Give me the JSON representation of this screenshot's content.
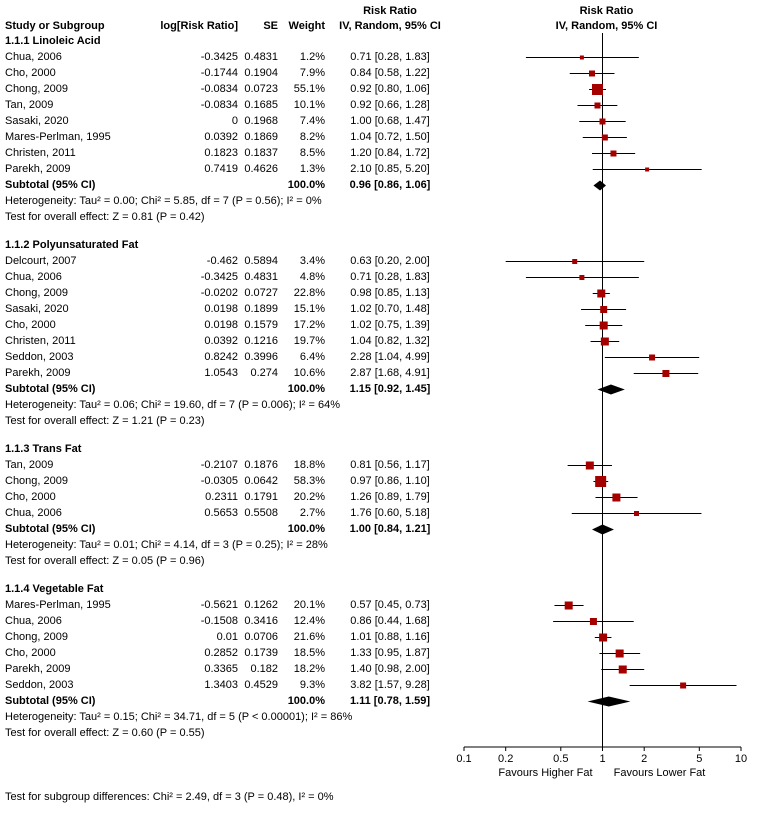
{
  "colors": {
    "marker": "#a40000",
    "diamond": "#000000",
    "ci_line": "#000000",
    "axis": "#000000"
  },
  "chart_data": {
    "type": "forest",
    "effect_measure": "Risk Ratio",
    "model": "IV, Random, 95% CI",
    "headers": {
      "study": "Study or Subgroup",
      "log_rr": "log[Risk Ratio]",
      "se": "SE",
      "weight": "Weight",
      "risk_ratio": "Risk Ratio",
      "ci": "IV, Random, 95% CI"
    },
    "axis": {
      "scale": "log",
      "xmin": 0.1,
      "xmax": 10,
      "ticks": [
        0.1,
        0.2,
        0.5,
        1,
        2,
        5,
        10
      ],
      "left_label": "Favours Higher Fat",
      "right_label": "Favours Lower Fat"
    },
    "subgroups": [
      {
        "name": "1.1.1 Linoleic Acid",
        "studies": [
          {
            "label": "Chua, 2006",
            "log_rr": "-0.3425",
            "se": "0.4831",
            "weight": "1.2%",
            "weight_value": 1.2,
            "rr": 0.71,
            "ci_low": 0.28,
            "ci_high": 1.83,
            "ci_text": "0.71 [0.28, 1.83]"
          },
          {
            "label": "Cho, 2000",
            "log_rr": "-0.1744",
            "se": "0.1904",
            "weight": "7.9%",
            "weight_value": 7.9,
            "rr": 0.84,
            "ci_low": 0.58,
            "ci_high": 1.22,
            "ci_text": "0.84 [0.58, 1.22]"
          },
          {
            "label": "Chong, 2009",
            "log_rr": "-0.0834",
            "se": "0.0723",
            "weight": "55.1%",
            "weight_value": 55.1,
            "rr": 0.92,
            "ci_low": 0.8,
            "ci_high": 1.06,
            "ci_text": "0.92 [0.80, 1.06]"
          },
          {
            "label": "Tan, 2009",
            "log_rr": "-0.0834",
            "se": "0.1685",
            "weight": "10.1%",
            "weight_value": 10.1,
            "rr": 0.92,
            "ci_low": 0.66,
            "ci_high": 1.28,
            "ci_text": "0.92 [0.66, 1.28]"
          },
          {
            "label": "Sasaki, 2020",
            "log_rr": "0",
            "se": "0.1968",
            "weight": "7.4%",
            "weight_value": 7.4,
            "rr": 1.0,
            "ci_low": 0.68,
            "ci_high": 1.47,
            "ci_text": "1.00 [0.68, 1.47]"
          },
          {
            "label": "Mares-Perlman, 1995",
            "log_rr": "0.0392",
            "se": "0.1869",
            "weight": "8.2%",
            "weight_value": 8.2,
            "rr": 1.04,
            "ci_low": 0.72,
            "ci_high": 1.5,
            "ci_text": "1.04 [0.72, 1.50]"
          },
          {
            "label": "Christen, 2011",
            "log_rr": "0.1823",
            "se": "0.1837",
            "weight": "8.5%",
            "weight_value": 8.5,
            "rr": 1.2,
            "ci_low": 0.84,
            "ci_high": 1.72,
            "ci_text": "1.20 [0.84, 1.72]"
          },
          {
            "label": "Parekh, 2009",
            "log_rr": "0.7419",
            "se": "0.4626",
            "weight": "1.3%",
            "weight_value": 1.3,
            "rr": 2.1,
            "ci_low": 0.85,
            "ci_high": 5.2,
            "ci_text": "2.10 [0.85, 5.20]"
          }
        ],
        "subtotal": {
          "label": "Subtotal (95% CI)",
          "weight": "100.0%",
          "rr": 0.96,
          "ci_low": 0.86,
          "ci_high": 1.06,
          "ci_text": "0.96 [0.86, 1.06]"
        },
        "heterogeneity": "Heterogeneity: Tau² = 0.00; Chi² = 5.85, df = 7 (P = 0.56); I² = 0%",
        "overall_effect": "Test for overall effect: Z = 0.81 (P = 0.42)"
      },
      {
        "name": "1.1.2 Polyunsaturated Fat",
        "studies": [
          {
            "label": "Delcourt, 2007",
            "log_rr": "-0.462",
            "se": "0.5894",
            "weight": "3.4%",
            "weight_value": 3.4,
            "rr": 0.63,
            "ci_low": 0.2,
            "ci_high": 2.0,
            "ci_text": "0.63 [0.20, 2.00]"
          },
          {
            "label": "Chua, 2006",
            "log_rr": "-0.3425",
            "se": "0.4831",
            "weight": "4.8%",
            "weight_value": 4.8,
            "rr": 0.71,
            "ci_low": 0.28,
            "ci_high": 1.83,
            "ci_text": "0.71 [0.28, 1.83]"
          },
          {
            "label": "Chong, 2009",
            "log_rr": "-0.0202",
            "se": "0.0727",
            "weight": "22.8%",
            "weight_value": 22.8,
            "rr": 0.98,
            "ci_low": 0.85,
            "ci_high": 1.13,
            "ci_text": "0.98 [0.85, 1.13]"
          },
          {
            "label": "Sasaki, 2020",
            "log_rr": "0.0198",
            "se": "0.1899",
            "weight": "15.1%",
            "weight_value": 15.1,
            "rr": 1.02,
            "ci_low": 0.7,
            "ci_high": 1.48,
            "ci_text": "1.02 [0.70, 1.48]"
          },
          {
            "label": "Cho, 2000",
            "log_rr": "0.0198",
            "se": "0.1579",
            "weight": "17.2%",
            "weight_value": 17.2,
            "rr": 1.02,
            "ci_low": 0.75,
            "ci_high": 1.39,
            "ci_text": "1.02 [0.75, 1.39]"
          },
          {
            "label": "Christen, 2011",
            "log_rr": "0.0392",
            "se": "0.1216",
            "weight": "19.7%",
            "weight_value": 19.7,
            "rr": 1.04,
            "ci_low": 0.82,
            "ci_high": 1.32,
            "ci_text": "1.04 [0.82, 1.32]"
          },
          {
            "label": "Seddon, 2003",
            "log_rr": "0.8242",
            "se": "0.3996",
            "weight": "6.4%",
            "weight_value": 6.4,
            "rr": 2.28,
            "ci_low": 1.04,
            "ci_high": 4.99,
            "ci_text": "2.28 [1.04, 4.99]"
          },
          {
            "label": "Parekh, 2009",
            "log_rr": "1.0543",
            "se": "0.274",
            "weight": "10.6%",
            "weight_value": 10.6,
            "rr": 2.87,
            "ci_low": 1.68,
            "ci_high": 4.91,
            "ci_text": "2.87 [1.68, 4.91]"
          }
        ],
        "subtotal": {
          "label": "Subtotal (95% CI)",
          "weight": "100.0%",
          "rr": 1.15,
          "ci_low": 0.92,
          "ci_high": 1.45,
          "ci_text": "1.15 [0.92, 1.45]"
        },
        "heterogeneity": "Heterogeneity: Tau² = 0.06; Chi² = 19.60, df = 7 (P = 0.006); I² = 64%",
        "overall_effect": "Test for overall effect: Z = 1.21 (P = 0.23)"
      },
      {
        "name": "1.1.3 Trans Fat",
        "studies": [
          {
            "label": "Tan, 2009",
            "log_rr": "-0.2107",
            "se": "0.1876",
            "weight": "18.8%",
            "weight_value": 18.8,
            "rr": 0.81,
            "ci_low": 0.56,
            "ci_high": 1.17,
            "ci_text": "0.81 [0.56, 1.17]"
          },
          {
            "label": "Chong, 2009",
            "log_rr": "-0.0305",
            "se": "0.0642",
            "weight": "58.3%",
            "weight_value": 58.3,
            "rr": 0.97,
            "ci_low": 0.86,
            "ci_high": 1.1,
            "ci_text": "0.97 [0.86, 1.10]"
          },
          {
            "label": "Cho, 2000",
            "log_rr": "0.2311",
            "se": "0.1791",
            "weight": "20.2%",
            "weight_value": 20.2,
            "rr": 1.26,
            "ci_low": 0.89,
            "ci_high": 1.79,
            "ci_text": "1.26 [0.89, 1.79]"
          },
          {
            "label": "Chua, 2006",
            "log_rr": "0.5653",
            "se": "0.5508",
            "weight": "2.7%",
            "weight_value": 2.7,
            "rr": 1.76,
            "ci_low": 0.6,
            "ci_high": 5.18,
            "ci_text": "1.76 [0.60, 5.18]"
          }
        ],
        "subtotal": {
          "label": "Subtotal (95% CI)",
          "weight": "100.0%",
          "rr": 1.0,
          "ci_low": 0.84,
          "ci_high": 1.21,
          "ci_text": "1.00 [0.84, 1.21]"
        },
        "heterogeneity": "Heterogeneity: Tau² = 0.01; Chi² = 4.14, df = 3 (P = 0.25); I² = 28%",
        "overall_effect": "Test for overall effect: Z = 0.05 (P = 0.96)"
      },
      {
        "name": "1.1.4 Vegetable Fat",
        "studies": [
          {
            "label": "Mares-Perlman, 1995",
            "log_rr": "-0.5621",
            "se": "0.1262",
            "weight": "20.1%",
            "weight_value": 20.1,
            "rr": 0.57,
            "ci_low": 0.45,
            "ci_high": 0.73,
            "ci_text": "0.57 [0.45, 0.73]"
          },
          {
            "label": "Chua, 2006",
            "log_rr": "-0.1508",
            "se": "0.3416",
            "weight": "12.4%",
            "weight_value": 12.4,
            "rr": 0.86,
            "ci_low": 0.44,
            "ci_high": 1.68,
            "ci_text": "0.86 [0.44, 1.68]"
          },
          {
            "label": "Chong, 2009",
            "log_rr": "0.01",
            "se": "0.0706",
            "weight": "21.6%",
            "weight_value": 21.6,
            "rr": 1.01,
            "ci_low": 0.88,
            "ci_high": 1.16,
            "ci_text": "1.01 [0.88, 1.16]"
          },
          {
            "label": "Cho, 2000",
            "log_rr": "0.2852",
            "se": "0.1739",
            "weight": "18.5%",
            "weight_value": 18.5,
            "rr": 1.33,
            "ci_low": 0.95,
            "ci_high": 1.87,
            "ci_text": "1.33 [0.95, 1.87]"
          },
          {
            "label": "Parekh, 2009",
            "log_rr": "0.3365",
            "se": "0.182",
            "weight": "18.2%",
            "weight_value": 18.2,
            "rr": 1.4,
            "ci_low": 0.98,
            "ci_high": 2.0,
            "ci_text": "1.40 [0.98, 2.00]"
          },
          {
            "label": "Seddon, 2003",
            "log_rr": "1.3403",
            "se": "0.4529",
            "weight": "9.3%",
            "weight_value": 9.3,
            "rr": 3.82,
            "ci_low": 1.57,
            "ci_high": 9.28,
            "ci_text": "3.82 [1.57, 9.28]"
          }
        ],
        "subtotal": {
          "label": "Subtotal (95% CI)",
          "weight": "100.0%",
          "rr": 1.11,
          "ci_low": 0.78,
          "ci_high": 1.59,
          "ci_text": "1.11 [0.78, 1.59]"
        },
        "heterogeneity": "Heterogeneity: Tau² = 0.15; Chi² = 34.71, df = 5 (P < 0.00001); I² = 86%",
        "overall_effect": "Test for overall effect: Z = 0.60 (P = 0.55)"
      }
    ],
    "footer": "Test for subgroup differences: Chi² = 2.49, df = 3 (P = 0.48), I² = 0%"
  }
}
